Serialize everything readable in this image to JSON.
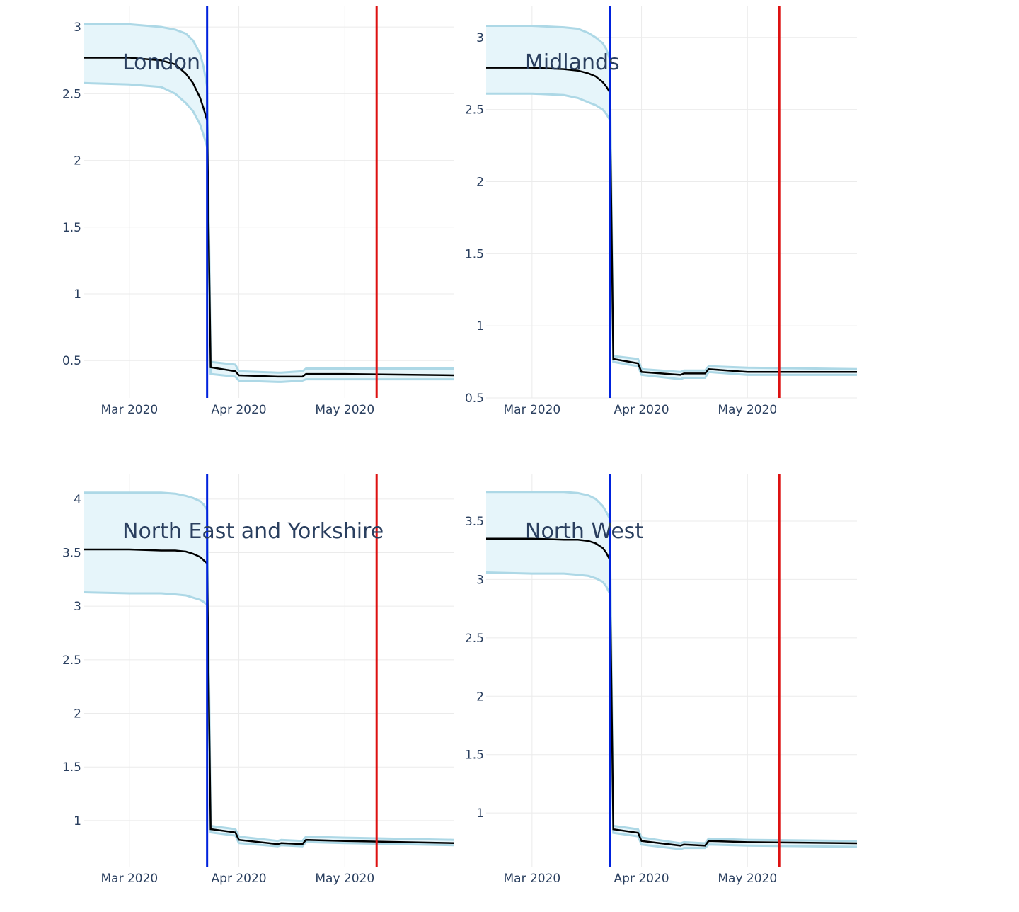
{
  "chart_data": [
    {
      "type": "line",
      "title": "London",
      "xlabel": "",
      "ylabel": "",
      "x_ticks": [
        "Mar 2020",
        "Apr 2020",
        "May 2020"
      ],
      "y_ticks": [
        0.5,
        1,
        1.5,
        2,
        2.5,
        3
      ],
      "ylim": [
        0.22,
        3.16
      ],
      "xlim": [
        "2020-02-17",
        "2020-06-01"
      ],
      "grid": true,
      "lockdown_date": "2020-03-23",
      "easing_date": "2020-05-10",
      "x": [
        "2020-02-17",
        "2020-03-01",
        "2020-03-10",
        "2020-03-14",
        "2020-03-17",
        "2020-03-19",
        "2020-03-21",
        "2020-03-22",
        "2020-03-23",
        "2020-03-24",
        "2020-03-31",
        "2020-04-01",
        "2020-04-12",
        "2020-04-13",
        "2020-04-19",
        "2020-04-20",
        "2020-05-01",
        "2020-06-01"
      ],
      "series": [
        {
          "values": [
            2.77,
            2.77,
            2.75,
            2.72,
            2.65,
            2.58,
            2.47,
            2.39,
            2.3,
            0.45,
            0.42,
            0.39,
            0.38,
            0.38,
            0.38,
            0.4,
            0.4,
            0.39
          ]
        },
        {
          "values": [
            3.02,
            3.02,
            3.0,
            2.98,
            2.95,
            2.9,
            2.8,
            2.7,
            2.55,
            0.49,
            0.47,
            0.42,
            0.41,
            0.41,
            0.42,
            0.44,
            0.44,
            0.44
          ]
        },
        {
          "values": [
            2.58,
            2.57,
            2.55,
            2.5,
            2.43,
            2.37,
            2.27,
            2.19,
            2.1,
            0.4,
            0.38,
            0.35,
            0.34,
            0.34,
            0.35,
            0.36,
            0.36,
            0.36
          ]
        }
      ]
    },
    {
      "type": "line",
      "title": "Midlands",
      "xlabel": "",
      "ylabel": "",
      "x_ticks": [
        "Mar 2020",
        "Apr 2020",
        "May 2020"
      ],
      "y_ticks": [
        0.5,
        1,
        1.5,
        2,
        2.5,
        3
      ],
      "ylim": [
        0.5,
        3.22
      ],
      "xlim": [
        "2020-02-17",
        "2020-06-01"
      ],
      "grid": true,
      "lockdown_date": "2020-03-23",
      "easing_date": "2020-05-10",
      "x": [
        "2020-02-17",
        "2020-03-01",
        "2020-03-10",
        "2020-03-14",
        "2020-03-17",
        "2020-03-19",
        "2020-03-21",
        "2020-03-22",
        "2020-03-23",
        "2020-03-24",
        "2020-03-31",
        "2020-04-01",
        "2020-04-12",
        "2020-04-13",
        "2020-04-19",
        "2020-04-20",
        "2020-05-01",
        "2020-06-01"
      ],
      "series": [
        {
          "values": [
            2.79,
            2.79,
            2.78,
            2.77,
            2.75,
            2.73,
            2.69,
            2.66,
            2.62,
            0.77,
            0.74,
            0.68,
            0.66,
            0.67,
            0.67,
            0.7,
            0.68,
            0.68
          ]
        },
        {
          "values": [
            3.08,
            3.08,
            3.07,
            3.06,
            3.03,
            3.0,
            2.96,
            2.92,
            2.85,
            0.79,
            0.77,
            0.7,
            0.68,
            0.69,
            0.69,
            0.72,
            0.71,
            0.7
          ]
        },
        {
          "values": [
            2.61,
            2.61,
            2.6,
            2.58,
            2.55,
            2.53,
            2.5,
            2.47,
            2.43,
            0.75,
            0.72,
            0.66,
            0.63,
            0.64,
            0.64,
            0.68,
            0.66,
            0.66
          ]
        }
      ]
    },
    {
      "type": "line",
      "title": "North East and Yorkshire",
      "xlabel": "",
      "ylabel": "",
      "x_ticks": [
        "Mar 2020",
        "Apr 2020",
        "May 2020"
      ],
      "y_ticks": [
        1,
        1.5,
        2,
        2.5,
        3,
        3.5,
        4
      ],
      "ylim": [
        0.57,
        4.23
      ],
      "xlim": [
        "2020-02-17",
        "2020-06-01"
      ],
      "grid": true,
      "lockdown_date": "2020-03-23",
      "easing_date": "2020-05-10",
      "x": [
        "2020-02-17",
        "2020-03-01",
        "2020-03-10",
        "2020-03-14",
        "2020-03-17",
        "2020-03-19",
        "2020-03-21",
        "2020-03-22",
        "2020-03-23",
        "2020-03-24",
        "2020-03-31",
        "2020-04-01",
        "2020-04-12",
        "2020-04-13",
        "2020-04-19",
        "2020-04-20",
        "2020-05-01",
        "2020-06-01"
      ],
      "series": [
        {
          "values": [
            3.53,
            3.53,
            3.52,
            3.52,
            3.51,
            3.49,
            3.46,
            3.43,
            3.4,
            0.92,
            0.89,
            0.82,
            0.78,
            0.79,
            0.78,
            0.82,
            0.81,
            0.79
          ]
        },
        {
          "values": [
            4.06,
            4.06,
            4.06,
            4.05,
            4.03,
            4.01,
            3.98,
            3.95,
            3.9,
            0.95,
            0.92,
            0.85,
            0.81,
            0.82,
            0.81,
            0.85,
            0.84,
            0.82
          ]
        },
        {
          "values": [
            3.13,
            3.12,
            3.12,
            3.11,
            3.1,
            3.08,
            3.06,
            3.04,
            3.01,
            0.89,
            0.86,
            0.79,
            0.76,
            0.77,
            0.76,
            0.8,
            0.79,
            0.77
          ]
        }
      ]
    },
    {
      "type": "line",
      "title": "North West",
      "xlabel": "",
      "ylabel": "",
      "x_ticks": [
        "Mar 2020",
        "Apr 2020",
        "May 2020"
      ],
      "y_ticks": [
        1,
        1.5,
        2,
        2.5,
        3,
        3.5
      ],
      "ylim": [
        0.54,
        3.9
      ],
      "xlim": [
        "2020-02-17",
        "2020-06-01"
      ],
      "grid": true,
      "lockdown_date": "2020-03-23",
      "easing_date": "2020-05-10",
      "x": [
        "2020-02-17",
        "2020-03-01",
        "2020-03-10",
        "2020-03-14",
        "2020-03-17",
        "2020-03-19",
        "2020-03-21",
        "2020-03-22",
        "2020-03-23",
        "2020-03-24",
        "2020-03-31",
        "2020-04-01",
        "2020-04-12",
        "2020-04-13",
        "2020-04-19",
        "2020-04-20",
        "2020-05-01",
        "2020-06-01"
      ],
      "series": [
        {
          "values": [
            3.35,
            3.35,
            3.34,
            3.34,
            3.33,
            3.31,
            3.27,
            3.23,
            3.17,
            0.86,
            0.83,
            0.76,
            0.72,
            0.73,
            0.72,
            0.76,
            0.75,
            0.74
          ]
        },
        {
          "values": [
            3.75,
            3.75,
            3.75,
            3.74,
            3.72,
            3.69,
            3.63,
            3.58,
            3.52,
            0.89,
            0.86,
            0.79,
            0.74,
            0.75,
            0.74,
            0.78,
            0.77,
            0.76
          ]
        },
        {
          "values": [
            3.06,
            3.05,
            3.05,
            3.04,
            3.03,
            3.01,
            2.98,
            2.94,
            2.88,
            0.83,
            0.8,
            0.73,
            0.69,
            0.7,
            0.7,
            0.73,
            0.72,
            0.71
          ]
        }
      ]
    }
  ],
  "style": {
    "mean_color": "#000000",
    "band_line_color": "#add8e6",
    "band_fill_color": "#e6f5fa",
    "lockdown_line_color": "#0022dd",
    "easing_line_color": "#dd1111",
    "grid_color": "#ebebeb",
    "text_color": "#2a3f5f"
  }
}
